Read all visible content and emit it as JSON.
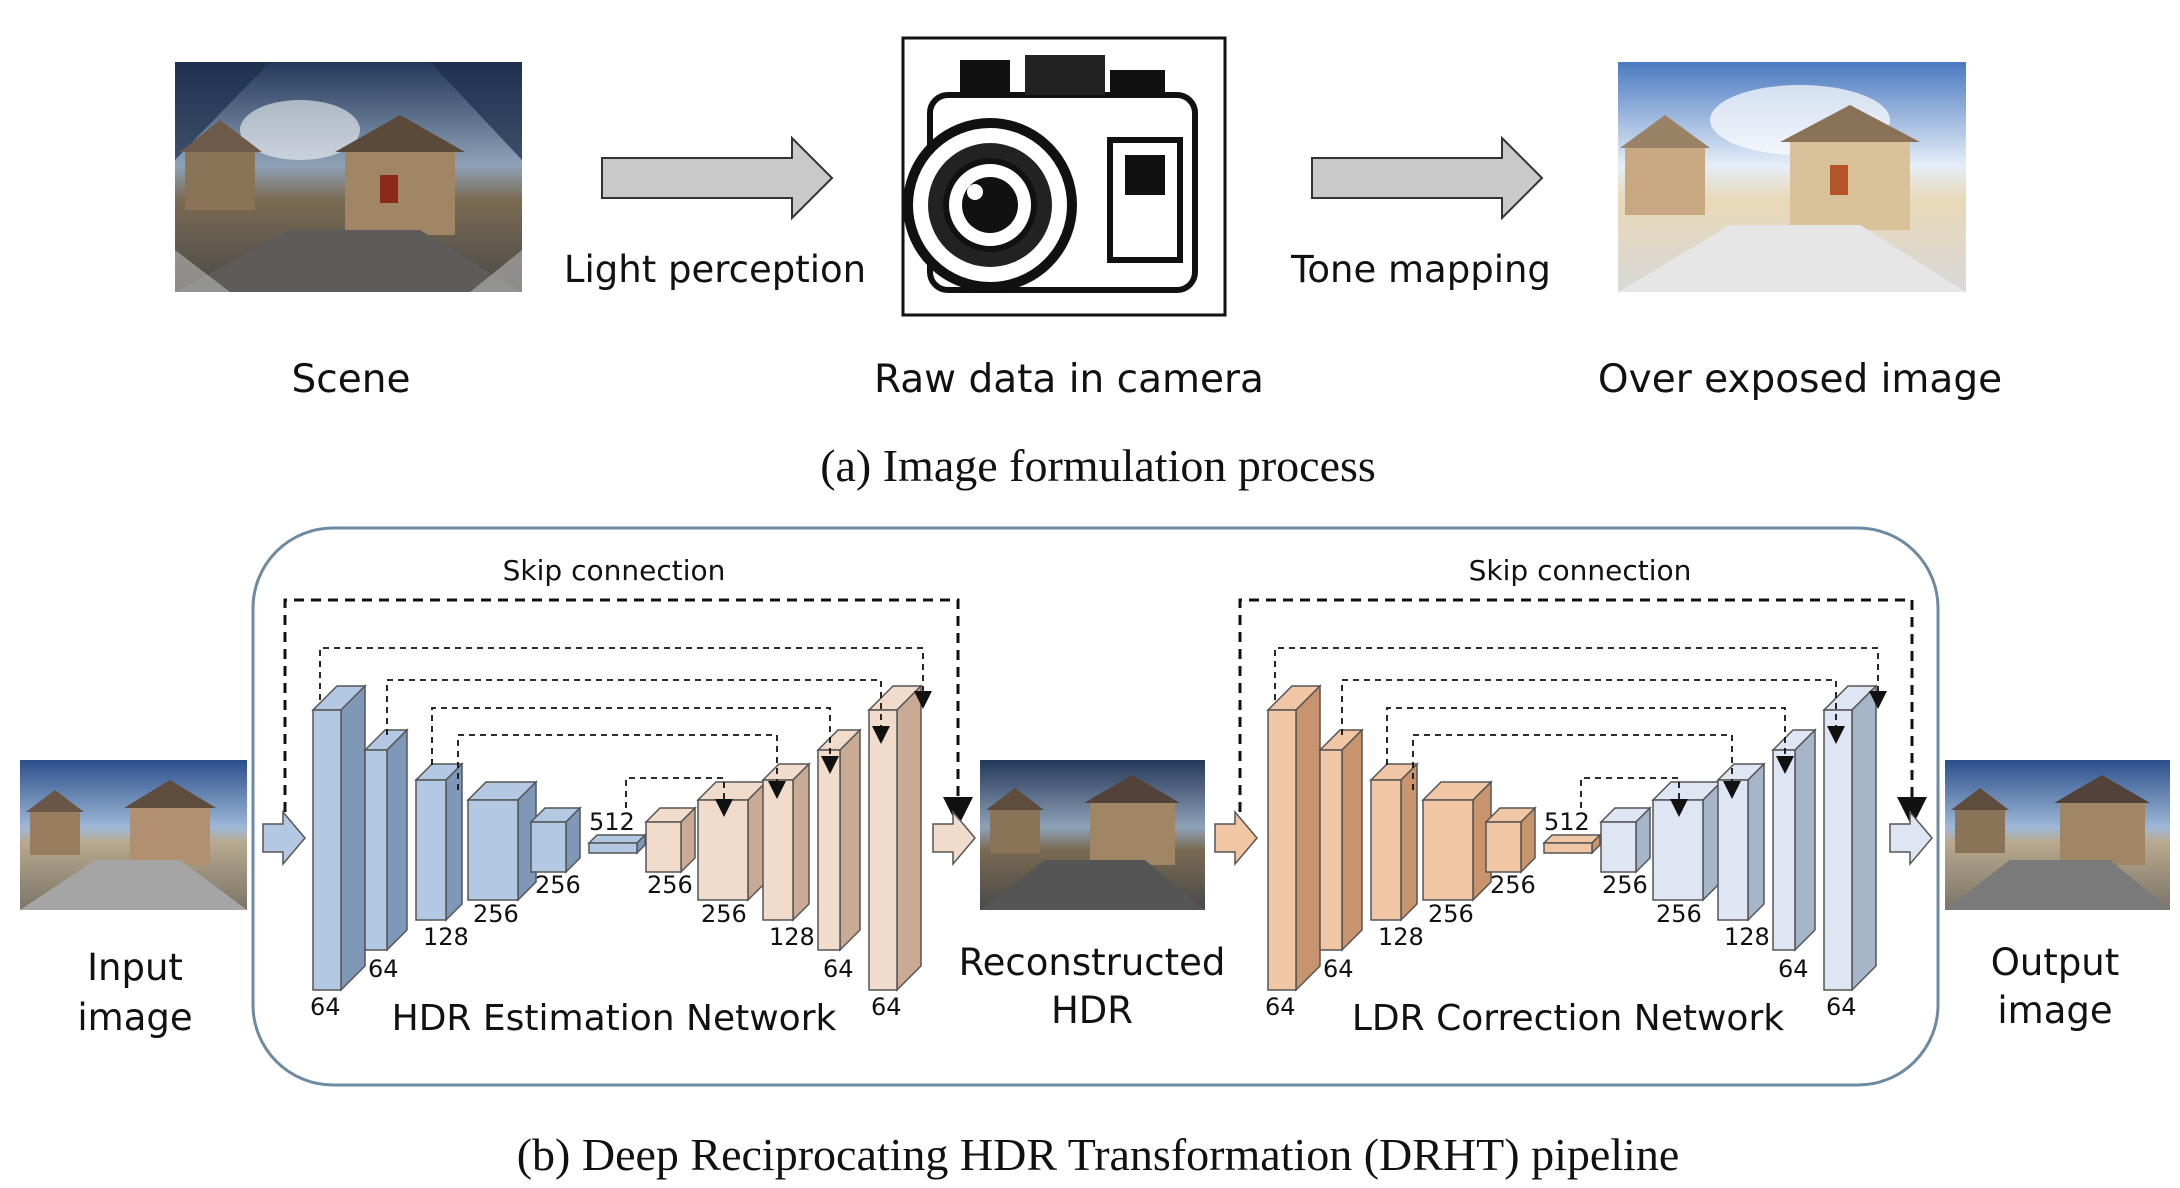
{
  "top": {
    "scene_label": "Scene",
    "raw_label": "Raw data in camera",
    "over_label": "Over exposed image",
    "arrow1_label": "Light perception",
    "arrow2_label": "Tone mapping",
    "caption": "(a) Image formulation process"
  },
  "bottom": {
    "input_label_line1": "Input",
    "input_label_line2": "image",
    "output_label_line1": "Output",
    "output_label_line2": "image",
    "recon_label_line1": "Reconstructed",
    "recon_label_line2": "HDR",
    "skip_left": "Skip connection",
    "skip_right": "Skip connection",
    "hdr_net_label": "HDR Estimation Network",
    "ldr_net_label": "LDR Correction Network",
    "caption": "(b) Deep Reciprocating HDR Transformation (DRHT) pipeline",
    "hdr_channels": [
      "64",
      "64",
      "128",
      "256",
      "256",
      "512",
      "256",
      "256",
      "128",
      "64",
      "64"
    ],
    "ldr_channels": [
      "64",
      "64",
      "128",
      "256",
      "256",
      "512",
      "256",
      "256",
      "128",
      "64",
      "64"
    ]
  },
  "colors": {
    "enc_blue": "#b3c8e2",
    "enc_blue_dark": "#7f98b8",
    "dec_tan": "#f1dccb",
    "dec_tan_dark": "#c9ab95",
    "ldr_enc": "#f0c6a4",
    "ldr_enc_dark": "#c7946e",
    "ldr_dec": "#dde6f2",
    "ldr_dec_dark": "#a6b5c8",
    "arrow_gray": "#c8c8c8",
    "frame": "#6d8aa3"
  }
}
